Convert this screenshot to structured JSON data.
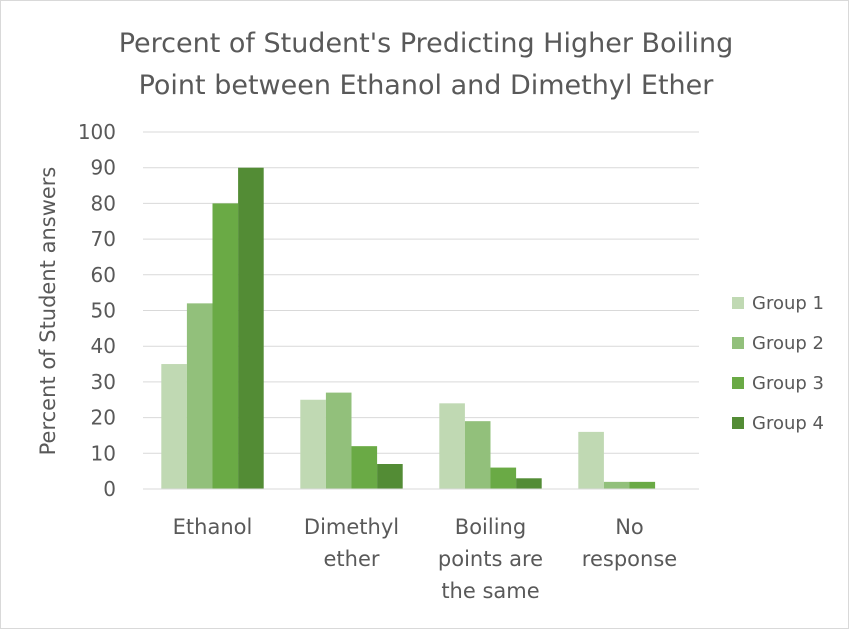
{
  "chart_data": {
    "type": "bar",
    "title_lines": [
      "Percent of Student's Predicting Higher Boiling",
      "Point between Ethanol and Dimethyl Ether"
    ],
    "ylabel": "Percent of Student answers",
    "xlabel": "",
    "ylim": [
      0,
      100
    ],
    "yticks": [
      0,
      10,
      20,
      30,
      40,
      50,
      60,
      70,
      80,
      90,
      100
    ],
    "grid": true,
    "legend_position": "right",
    "categories": [
      [
        "Ethanol"
      ],
      [
        "Dimethyl",
        "ether"
      ],
      [
        "Boiling",
        "points are",
        "the same"
      ],
      [
        "No",
        "response"
      ]
    ],
    "series": [
      {
        "name": "Group 1",
        "color": "#c0d9b3",
        "values": [
          35,
          25,
          24,
          16
        ]
      },
      {
        "name": "Group 2",
        "color": "#92c07b",
        "values": [
          52,
          27,
          19,
          2
        ]
      },
      {
        "name": "Group 3",
        "color": "#6aaa45",
        "values": [
          80,
          12,
          6,
          2
        ]
      },
      {
        "name": "Group 4",
        "color": "#538c35",
        "values": [
          90,
          7,
          3,
          0
        ]
      }
    ]
  }
}
